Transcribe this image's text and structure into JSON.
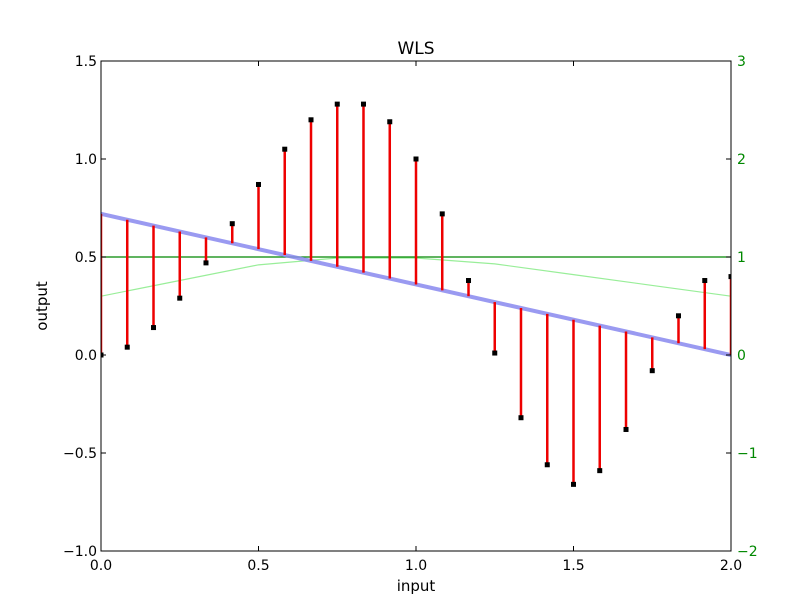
{
  "chart_data": {
    "type": "line",
    "title": "WLS",
    "xlabel": "input",
    "ylabel": "output",
    "xlim": [
      0,
      2
    ],
    "ylim": [
      -1,
      1.5
    ],
    "y2lim": [
      -2,
      3
    ],
    "grid": false,
    "x_ticks": [
      0.0,
      0.5,
      1.0,
      1.5,
      2.0
    ],
    "x_tick_labels": [
      "0.0",
      "0.5",
      "1.0",
      "1.5",
      "2.0"
    ],
    "y_ticks": [
      -1.0,
      -0.5,
      0.0,
      0.5,
      1.0,
      1.5
    ],
    "y_tick_labels": [
      "−1.0",
      "−0.5",
      "0.0",
      "0.5",
      "1.0",
      "1.5"
    ],
    "y2_ticks": [
      -2,
      -1,
      0,
      1,
      2,
      3
    ],
    "y2_tick_labels": [
      "−2",
      "−1",
      "0",
      "1",
      "2",
      "3"
    ],
    "series": [
      {
        "kind": "points",
        "color": "#000000",
        "x": [
          0.0,
          0.0833,
          0.1667,
          0.25,
          0.3333,
          0.4167,
          0.5,
          0.5833,
          0.6667,
          0.75,
          0.8333,
          0.9167,
          1.0,
          1.0833,
          1.1667,
          1.25,
          1.3333,
          1.4167,
          1.5,
          1.5833,
          1.6667,
          1.75,
          1.8333,
          1.9167,
          2.0
        ],
        "values": [
          0.0,
          0.04,
          0.14,
          0.29,
          0.47,
          0.67,
          0.87,
          1.05,
          1.2,
          1.28,
          1.28,
          1.19,
          1.0,
          0.72,
          0.38,
          0.01,
          -0.32,
          -0.56,
          -0.66,
          -0.59,
          -0.38,
          -0.08,
          0.2,
          0.38,
          0.4
        ]
      },
      {
        "kind": "fit",
        "color": "#8888ee",
        "x": [
          0.0,
          2.0
        ],
        "values": [
          0.72,
          0.0
        ]
      },
      {
        "kind": "residuals",
        "color": "#ee0000"
      },
      {
        "kind": "weight-constant",
        "axis": "right",
        "color": "#008800",
        "x": [
          0.0,
          2.0
        ],
        "values": [
          1.0,
          1.0
        ]
      },
      {
        "kind": "weight-curve",
        "axis": "right",
        "color": "#99ee99",
        "x": [
          0.0,
          0.25,
          0.5,
          0.75,
          1.0,
          1.25,
          1.5,
          1.75,
          2.0
        ],
        "values": [
          0.6,
          0.76,
          0.92,
          0.99,
          0.99,
          0.93,
          0.82,
          0.71,
          0.6
        ]
      }
    ]
  }
}
